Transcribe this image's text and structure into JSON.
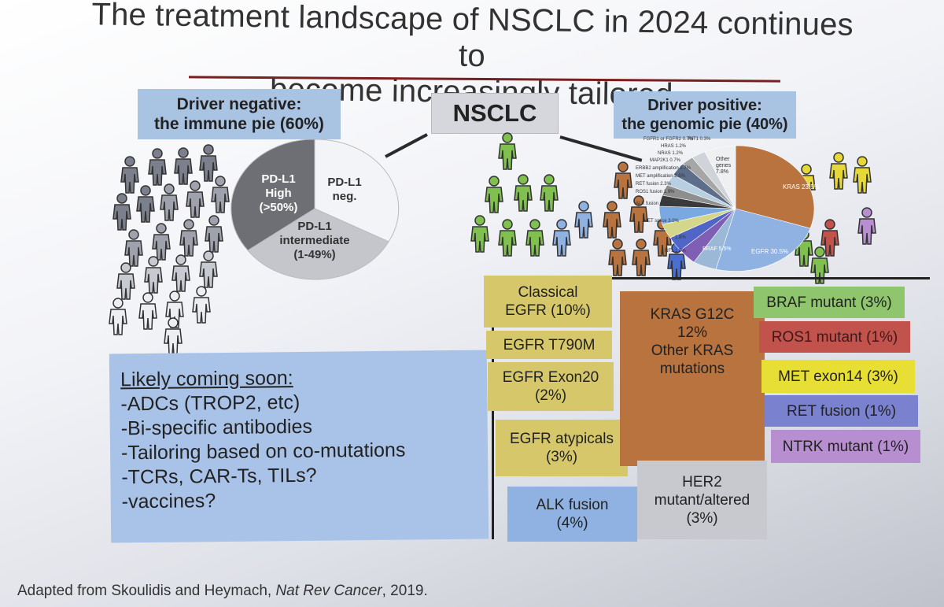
{
  "title": {
    "line1": "The treatment landscape of NSCLC in 2024 continues to",
    "line2": "become increasingly tailored"
  },
  "center_label": "NSCLC",
  "driver_negative": {
    "header_line1": "Driver negative:",
    "header_line2": "the immune pie (60%)",
    "pie": [
      {
        "label": "PD-L1 neg.",
        "lines": [
          "PD-L1",
          "neg."
        ],
        "color": "#f3f4f7"
      },
      {
        "label": "PD-L1 intermediate (1-49%)",
        "lines": [
          "PD-L1",
          "intermediate",
          "(1-49%)"
        ],
        "color": "#c5c6cc"
      },
      {
        "label": "PD-L1 High (>50%)",
        "lines": [
          "PD-L1",
          "High",
          "(>50%)"
        ],
        "color": "#6e6f74"
      }
    ]
  },
  "driver_positive": {
    "header_line1": "Driver positive:",
    "header_line2": "the genomic pie (40%)",
    "pie_labels": {
      "kras": "KRAS 23.5%",
      "egfr": "EGFR 30.5%",
      "braf": "BRAF 5.5%",
      "other_genes_line1": "Other",
      "other_genes_line2": "genes",
      "other_genes_line3": "7.8%",
      "small": [
        "FGFR1 or FGFR2 0.7%",
        "RIT1 0.3%",
        "HRAS 1.2%",
        "NRAS 1.2%",
        "MAP2K1 0.7%",
        "ERBB2 amplification 2.7%",
        "MET amplification 2.5%",
        "RET fusion 2.3%",
        "ROS1 fusion 1.9%",
        "ALK fusion 4.4%",
        "MET splice 3.0%",
        "1.8%",
        "NF1 1.9%"
      ]
    }
  },
  "likely": {
    "heading": "Likely coming soon:",
    "items": [
      "-ADCs (TROP2, etc)",
      "-Bi-specific antibodies",
      "-Tailoring based on co-mutations",
      "-TCRs, CAR-Ts, TILs?",
      "-vaccines?"
    ]
  },
  "targets": {
    "classical_egfr": {
      "line1": "Classical",
      "line2": "EGFR (10%)"
    },
    "egfr_t790m": "EGFR T790M",
    "egfr_exon20": {
      "line1": "EGFR Exon20",
      "line2": "(2%)"
    },
    "egfr_atypicals": {
      "line1": "EGFR atypicals",
      "line2": "(3%)"
    },
    "alk_fusion": {
      "line1": "ALK fusion",
      "line2": "(4%)"
    },
    "kras": {
      "line1": "KRAS G12C",
      "line2": "12%",
      "line3": "Other KRAS",
      "line4": "mutations"
    },
    "her2": {
      "line1": "HER2",
      "line2": "mutant/altered",
      "line3": "(3%)"
    },
    "braf": "BRAF mutant (3%)",
    "ros1": "ROS1 mutant (1%)",
    "met": "MET exon14 (3%)",
    "ret": "RET fusion (1%)",
    "ntrk": "NTRK mutant (1%)"
  },
  "colors": {
    "header_blue": "#a9c3e3",
    "egfr_yellow": "#d6c86a",
    "alk_blue": "#8fb2e2",
    "kras_brown": "#b8733f",
    "her2_grey": "#c8c9cf",
    "braf_green": "#8fc56d",
    "ros1_red": "#c1524c",
    "met_yellow": "#e8df34",
    "ret_blue": "#7a82cf",
    "ntrk_purple": "#b78fd0"
  },
  "footer": {
    "prefix": "Adapted from Skoulidis and Heymach, ",
    "journal": "Nat Rev Cancer",
    "suffix": ", 2019."
  }
}
